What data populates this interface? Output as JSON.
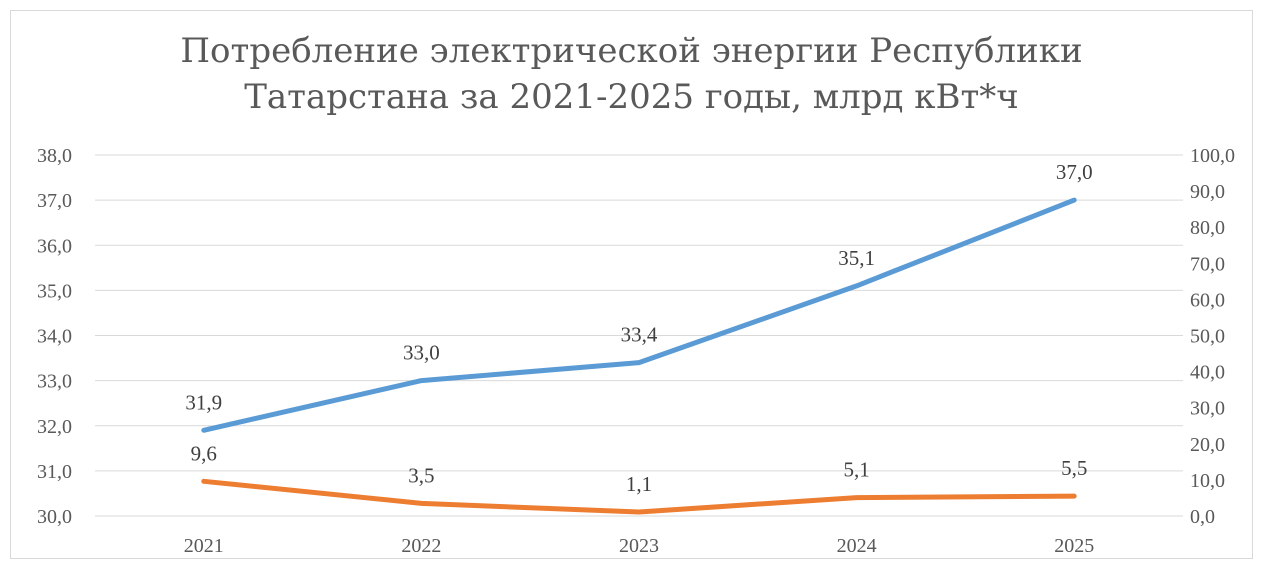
{
  "chart_data": {
    "type": "line",
    "title_lines": [
      "Потребление электрической энергии Республики",
      "Татарстана за 2021-2025 годы, млрд кВт*ч"
    ],
    "categories": [
      "2021",
      "2022",
      "2023",
      "2024",
      "2025"
    ],
    "y_left": {
      "ylim": [
        30.0,
        38.0
      ],
      "ticks": [
        "30,0",
        "31,0",
        "32,0",
        "33,0",
        "34,0",
        "35,0",
        "36,0",
        "37,0",
        "38,0"
      ]
    },
    "y_right": {
      "ylim": [
        0.0,
        100.0
      ],
      "ticks": [
        "0,0",
        "10,0",
        "20,0",
        "30,0",
        "40,0",
        "50,0",
        "60,0",
        "70,0",
        "80,0",
        "90,0",
        "100,0"
      ]
    },
    "grid": true,
    "legend": "none",
    "series": [
      {
        "axis": "left",
        "color": "#5b9bd5",
        "values": [
          31.9,
          33.0,
          33.4,
          35.1,
          37.0
        ],
        "labels": [
          "31,9",
          "33,0",
          "33,4",
          "35,1",
          "37,0"
        ]
      },
      {
        "axis": "right",
        "color": "#ed7d31",
        "values": [
          9.6,
          3.5,
          1.1,
          5.1,
          5.5
        ],
        "labels": [
          "9,6",
          "3,5",
          "1,1",
          "5,1",
          "5,5"
        ]
      }
    ]
  }
}
